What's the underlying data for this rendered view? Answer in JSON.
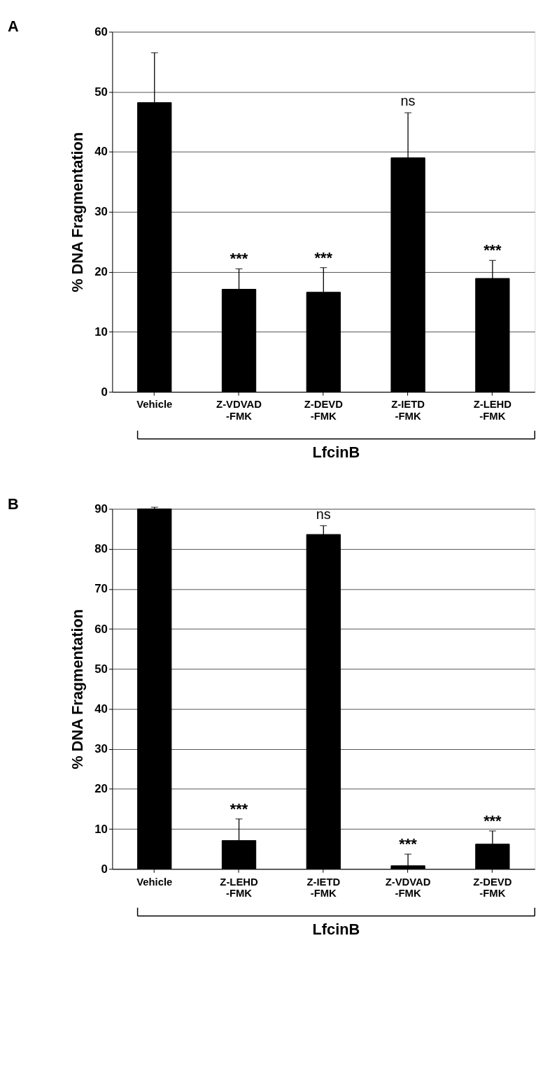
{
  "chart_data": [
    {
      "type": "bar",
      "title": "A",
      "ylabel": "% DNA Fragmentation",
      "categories": [
        "Vehicle",
        "Z-VDVAD\n-FMK",
        "Z-DEVD\n-FMK",
        "Z-IETD\n-FMK",
        "Z-LEHD\n-FMK"
      ],
      "series": [
        {
          "color": "#000000",
          "values": [
            48.2,
            17.1,
            16.6,
            39.0,
            18.9
          ],
          "errors": [
            8.3,
            3.4,
            4.1,
            7.5,
            3.0
          ]
        }
      ],
      "ylim": [
        0,
        60
      ],
      "yticks": [
        0,
        10,
        20,
        30,
        40,
        50,
        60
      ],
      "grid": "y",
      "annotations": [
        {
          "text": "***",
          "x": "Z-VDVAD\n-FMK",
          "y": 20.5
        },
        {
          "text": "***",
          "x": "Z-DEVD\n-FMK",
          "y": 20.7
        },
        {
          "text": "ns",
          "x": "Z-IETD\n-FMK",
          "y": 46.5
        },
        {
          "text": "***",
          "x": "Z-LEHD\n-FMK",
          "y": 21.9
        },
        "LfcinB"
      ]
    },
    {
      "type": "bar",
      "title": "B",
      "ylabel": "% DNA Fragmentation",
      "categories": [
        "Vehicle",
        "Z-LEHD\n-FMK",
        "Z-IETD\n-FMK",
        "Z-VDVAD\n-FMK",
        "Z-DEVD\n-FMK"
      ],
      "series": [
        {
          "color": "#000000",
          "values": [
            90.0,
            7.1,
            83.6,
            0.8,
            6.2
          ],
          "errors": [
            0.4,
            5.4,
            2.2,
            2.9,
            3.3
          ]
        }
      ],
      "ylim": [
        0,
        90
      ],
      "yticks": [
        0,
        10,
        20,
        30,
        40,
        50,
        60,
        70,
        80,
        90
      ],
      "grid": "y",
      "annotations": [
        {
          "text": "***",
          "x": "Z-LEHD\n-FMK",
          "y": 12.5
        },
        {
          "text": "ns",
          "x": "Z-IETD\n-FMK",
          "y": 85.8
        },
        {
          "text": "***",
          "x": "Z-VDVAD\n-FMK",
          "y": 3.7
        },
        {
          "text": "***",
          "x": "Z-DEVD\n-FMK",
          "y": 9.5
        },
        "LfcinB"
      ]
    }
  ]
}
